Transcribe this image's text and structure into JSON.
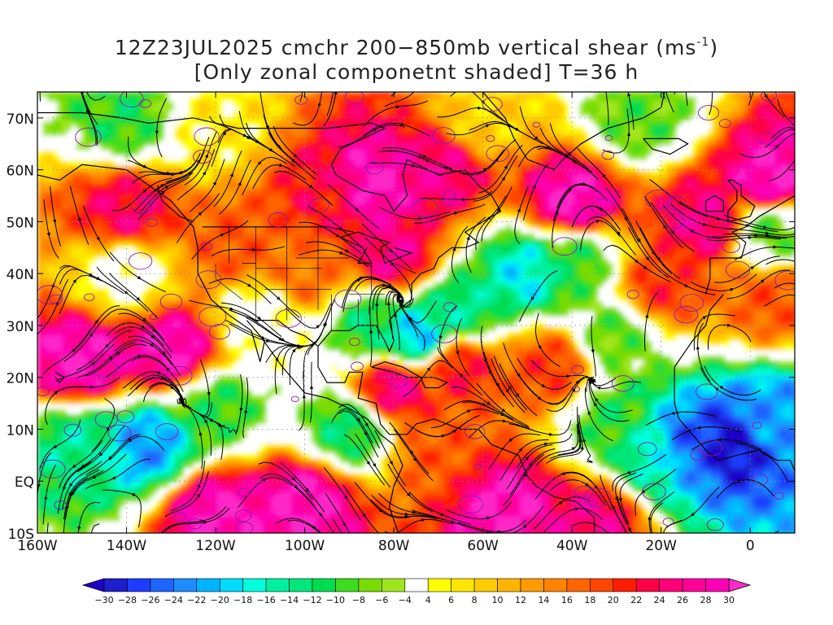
{
  "title": {
    "line1_prefix": "12Z23JUL2025 cmchr 200−850mb vertical shear (ms",
    "line1_sup": "-1",
    "line1_suffix": ")",
    "line2": "[Only zonal componetnt shaded] T=36 h"
  },
  "lat_labels": [
    "70N",
    "60N",
    "50N",
    "40N",
    "30N",
    "20N",
    "10N",
    "EQ",
    "10S"
  ],
  "lat_values": [
    70,
    60,
    50,
    40,
    30,
    20,
    10,
    0,
    -10
  ],
  "lon_labels": [
    "160W",
    "140W",
    "120W",
    "100W",
    "80W",
    "60W",
    "40W",
    "20W",
    "0"
  ],
  "lon_values": [
    -160,
    -140,
    -120,
    -100,
    -80,
    -60,
    -40,
    -20,
    0
  ],
  "map_extent": {
    "lon_min": -160,
    "lon_max": 10,
    "lat_min": -10,
    "lat_max": 75
  },
  "colorbar": {
    "labels": [
      "-30",
      "-28",
      "-26",
      "-24",
      "-22",
      "-20",
      "-18",
      "-16",
      "-14",
      "-12",
      "-10",
      "-8",
      "-6",
      "-4",
      "4",
      "6",
      "8",
      "10",
      "12",
      "14",
      "16",
      "18",
      "20",
      "22",
      "24",
      "26",
      "28",
      "30"
    ],
    "colors": [
      "#1e1ecc",
      "#1e3cff",
      "#1e64ff",
      "#1e8cff",
      "#00b4ff",
      "#00dcff",
      "#00ffdc",
      "#00f0a0",
      "#00e678",
      "#00dc50",
      "#3cdc1e",
      "#78dc00",
      "#a0e61e",
      "#ffffff",
      "#ffff00",
      "#ffe600",
      "#ffcc00",
      "#ffb400",
      "#ff9b00",
      "#ff8200",
      "#ff6400",
      "#ff4600",
      "#ff1e00",
      "#ff0046",
      "#ff0078",
      "#ff0096",
      "#ff00b4"
    ],
    "end_low": "#1e00c8",
    "end_high": "#ff28c8"
  },
  "shading_centers": [
    {
      "lon": -150,
      "lat": 23,
      "value": 30
    },
    {
      "lon": -130,
      "lat": 25,
      "value": 30
    },
    {
      "lon": -140,
      "lat": 52,
      "value": 24
    },
    {
      "lon": -115,
      "lat": 45,
      "value": 18
    },
    {
      "lon": -95,
      "lat": 55,
      "value": 22
    },
    {
      "lon": -85,
      "lat": 57,
      "value": 30
    },
    {
      "lon": -70,
      "lat": 60,
      "value": 26
    },
    {
      "lon": -40,
      "lat": 54,
      "value": 30
    },
    {
      "lon": -10,
      "lat": 50,
      "value": 26
    },
    {
      "lon": 5,
      "lat": 58,
      "value": 30
    },
    {
      "lon": -80,
      "lat": 43,
      "value": 26
    },
    {
      "lon": -100,
      "lat": 40,
      "value": 16
    },
    {
      "lon": -65,
      "lat": 22,
      "value": 22
    },
    {
      "lon": -45,
      "lat": 22,
      "value": 20
    },
    {
      "lon": -80,
      "lat": 18,
      "value": 26
    },
    {
      "lon": -20,
      "lat": 37,
      "value": 20
    },
    {
      "lon": 5,
      "lat": 35,
      "value": 18
    },
    {
      "lon": -120,
      "lat": -6,
      "value": 30
    },
    {
      "lon": -100,
      "lat": -4,
      "value": 30
    },
    {
      "lon": -55,
      "lat": -5,
      "value": 30
    },
    {
      "lon": -35,
      "lat": -8,
      "value": 26
    },
    {
      "lon": -70,
      "lat": 5,
      "value": 18
    },
    {
      "lon": -150,
      "lat": 7,
      "value": -14
    },
    {
      "lon": -135,
      "lat": 7,
      "value": -22
    },
    {
      "lon": -120,
      "lat": 14,
      "value": -10
    },
    {
      "lon": -85,
      "lat": 30,
      "value": -12
    },
    {
      "lon": -75,
      "lat": 28,
      "value": -20
    },
    {
      "lon": -65,
      "lat": 33,
      "value": -14
    },
    {
      "lon": -90,
      "lat": 10,
      "value": -12
    },
    {
      "lon": -50,
      "lat": 40,
      "value": -18
    },
    {
      "lon": -40,
      "lat": 42,
      "value": -10
    },
    {
      "lon": -20,
      "lat": 5,
      "value": -16
    },
    {
      "lon": -5,
      "lat": 7,
      "value": -30
    },
    {
      "lon": -15,
      "lat": 7,
      "value": -26
    },
    {
      "lon": 5,
      "lat": 12,
      "value": -22
    },
    {
      "lon": -30,
      "lat": 12,
      "value": -10
    },
    {
      "lon": -120,
      "lat": 68,
      "value": 6
    },
    {
      "lon": -60,
      "lat": 70,
      "value": 8
    },
    {
      "lon": -140,
      "lat": 70,
      "value": -10
    },
    {
      "lon": -25,
      "lat": 70,
      "value": -8
    },
    {
      "lon": -110,
      "lat": 32,
      "value": 2
    },
    {
      "lon": -140,
      "lat": 40,
      "value": 2
    },
    {
      "lon": 5,
      "lat": 48,
      "value": -8
    },
    {
      "lon": -30,
      "lat": 28,
      "value": -8
    }
  ]
}
